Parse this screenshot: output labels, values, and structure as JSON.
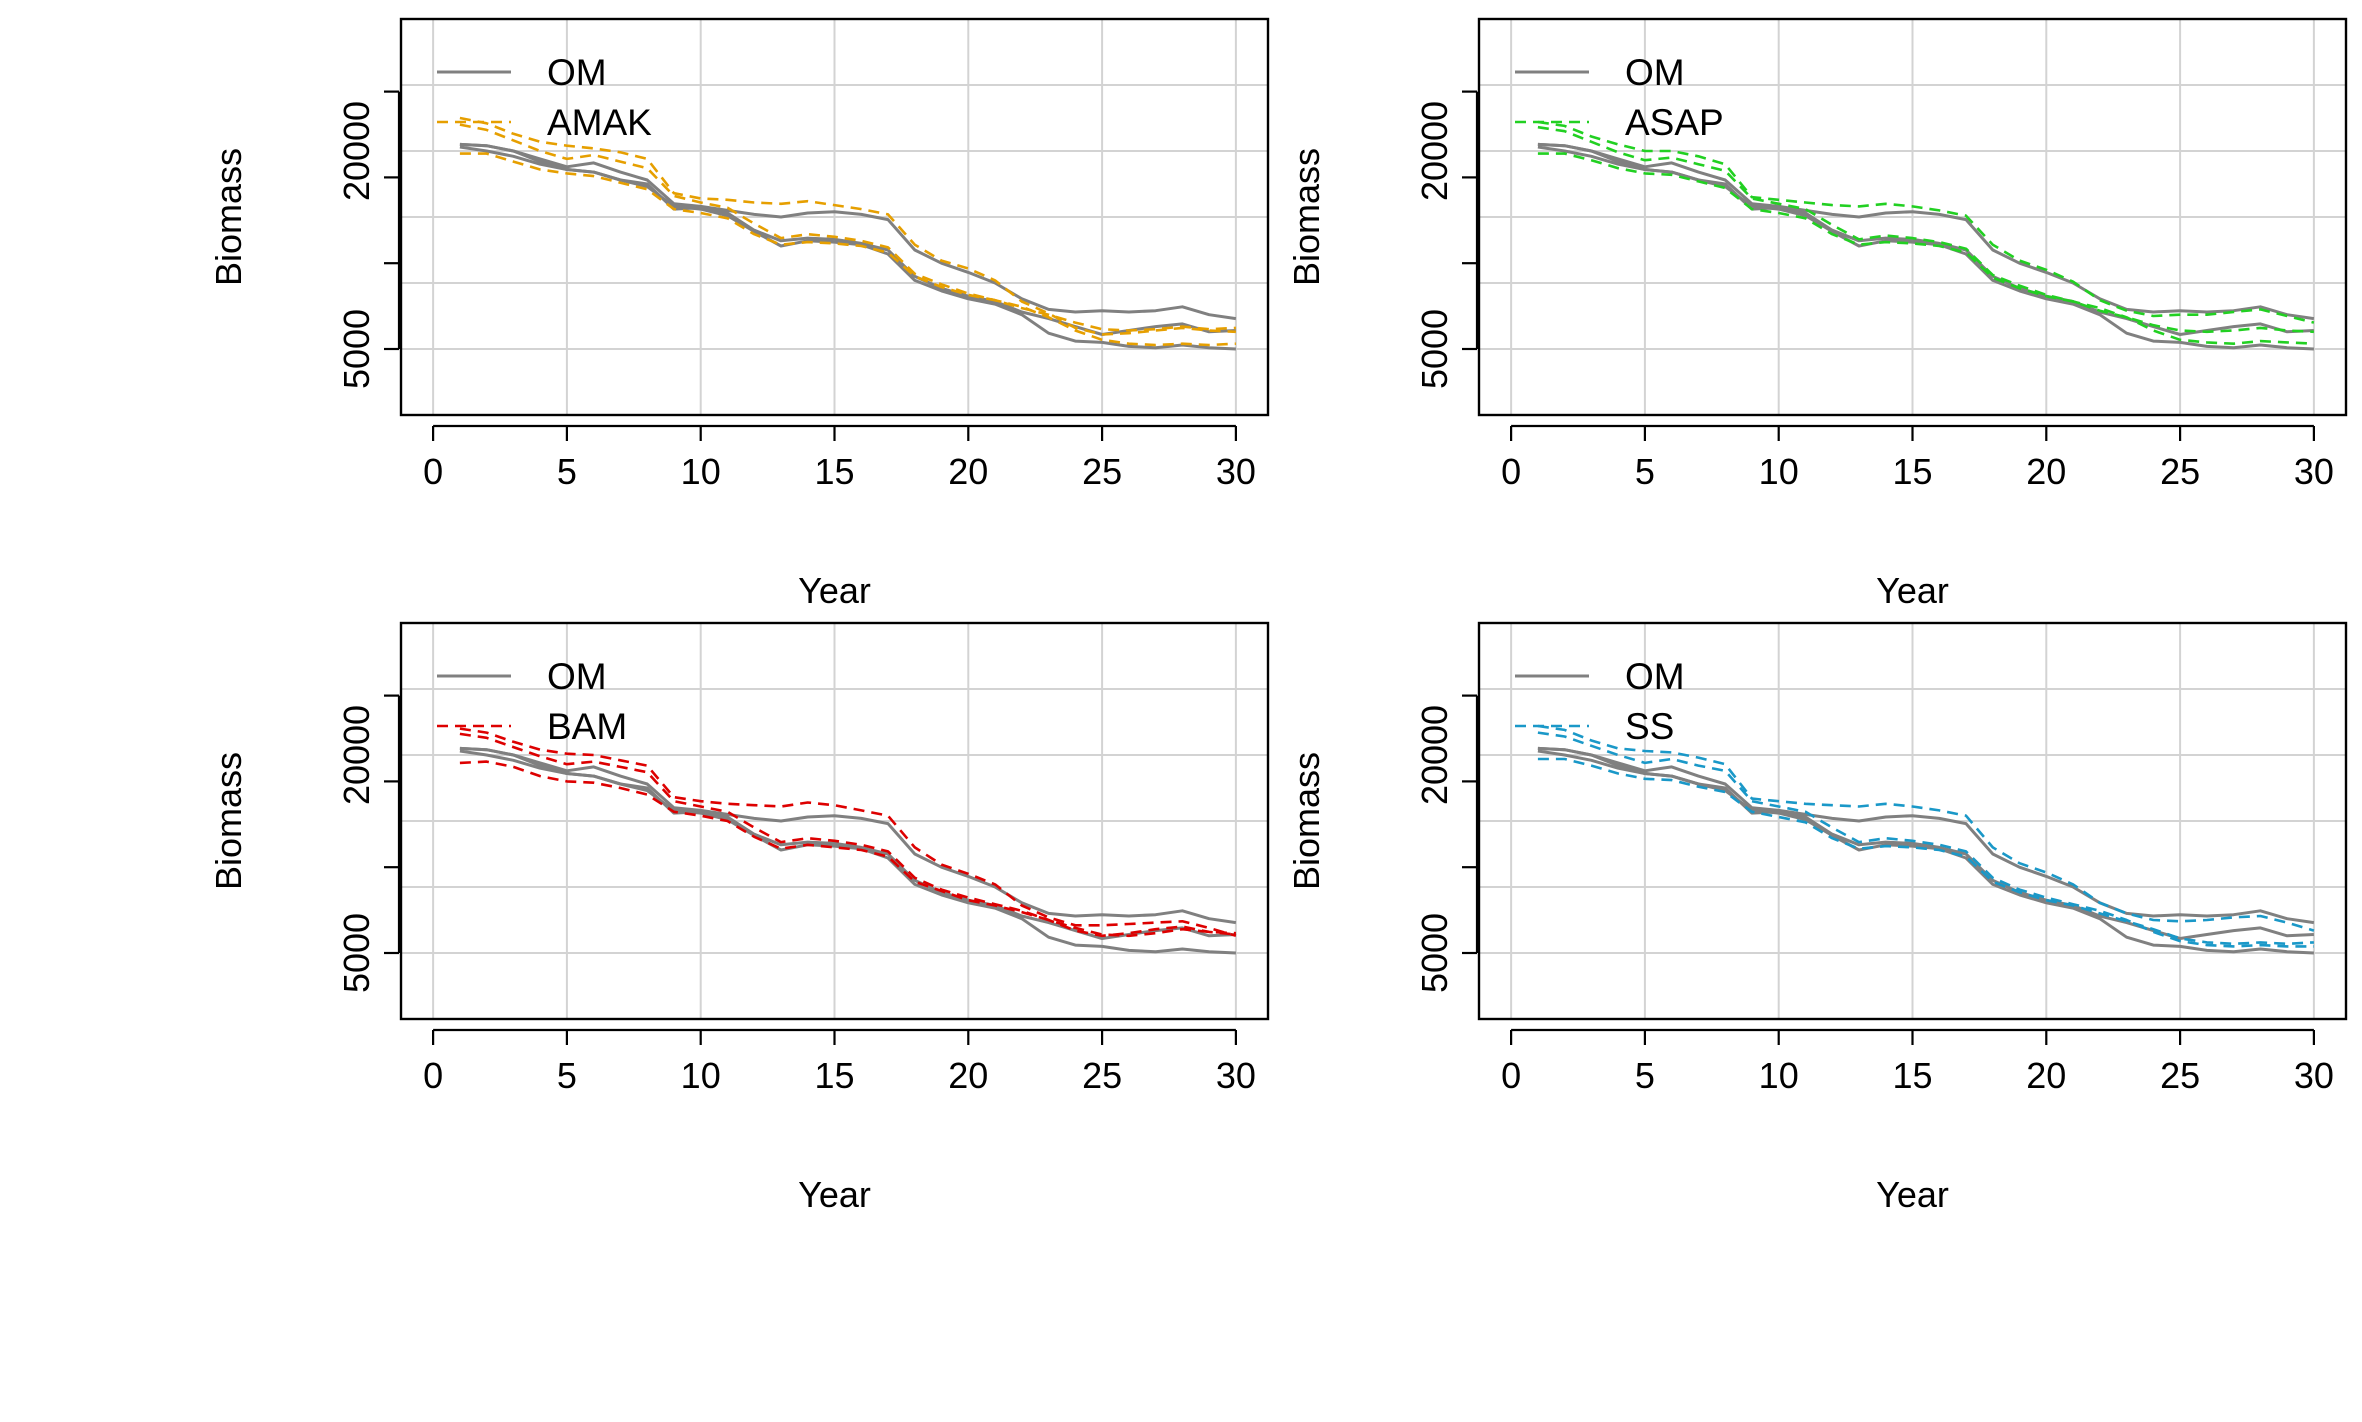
{
  "chart_data": [
    {
      "type": "line",
      "xlabel": "Year",
      "ylabel": "Biomass",
      "xlim": [
        0,
        30
      ],
      "ylim": [
        0,
        30000
      ],
      "x_ticks": [
        0,
        5,
        10,
        15,
        20,
        25,
        30
      ],
      "y_tick_labels": [
        {
          "value": 5000,
          "label": "5000"
        },
        {
          "value": 20000,
          "label": "20000"
        }
      ],
      "grid": true,
      "legend_placement": "top-left",
      "legend": [
        "OM",
        "AMAK"
      ],
      "colors": {
        "om": "#808080",
        "model": "#E69F00"
      },
      "x": [
        1,
        2,
        3,
        4,
        5,
        6,
        7,
        8,
        9,
        10,
        11,
        12,
        13,
        14,
        15,
        16,
        17,
        18,
        19,
        20,
        21,
        22,
        23,
        24,
        25,
        26,
        27,
        28,
        29,
        30
      ],
      "om_series": [
        [
          20500,
          20400,
          20000,
          19400,
          18800,
          19100,
          18400,
          17800,
          16000,
          15800,
          15500,
          15200,
          15000,
          15300,
          15400,
          15200,
          14800,
          12500,
          11500,
          10800,
          10000,
          8800,
          8000,
          7800,
          7900,
          7800,
          7900,
          8200,
          7600,
          7300
        ],
        [
          20500,
          20400,
          20000,
          19200,
          18600,
          18400,
          17800,
          17500,
          15600,
          15700,
          15300,
          14000,
          13200,
          13400,
          13300,
          13000,
          12500,
          10500,
          9600,
          9000,
          8600,
          7800,
          7300,
          6700,
          6100,
          6400,
          6700,
          6900,
          6300,
          6400
        ],
        [
          20300,
          20000,
          19600,
          19000,
          18600,
          18400,
          17800,
          17300,
          15800,
          15600,
          15100,
          13900,
          12800,
          13200,
          13100,
          12900,
          12200,
          10200,
          9400,
          8800,
          8400,
          7600,
          6200,
          5600,
          5500,
          5200,
          5100,
          5300,
          5100,
          5000
        ]
      ],
      "model_series": [
        [
          22500,
          22100,
          21300,
          20700,
          20400,
          20200,
          19900,
          19400,
          16800,
          16400,
          16300,
          16100,
          16000,
          16200,
          15900,
          15600,
          15200,
          12900,
          11700,
          11100,
          10200,
          8600,
          7700,
          6600,
          6100,
          6200,
          6400,
          6600,
          6400,
          6300
        ],
        [
          22000,
          21600,
          20800,
          20000,
          19400,
          19700,
          19200,
          18700,
          16600,
          16100,
          15700,
          14500,
          13400,
          13700,
          13500,
          13200,
          12700,
          10700,
          9900,
          9200,
          8700,
          8200,
          7400,
          6400,
          5700,
          5400,
          5300,
          5400,
          5300,
          5400
        ],
        [
          19800,
          19800,
          19200,
          18600,
          18300,
          18100,
          17600,
          17100,
          15600,
          15300,
          14900,
          13700,
          12900,
          13100,
          13000,
          12800,
          12300,
          10500,
          9700,
          9100,
          8700,
          8100,
          7600,
          7000,
          6500,
          6400,
          6500,
          6700,
          6500,
          6600
        ]
      ]
    },
    {
      "type": "line",
      "xlabel": "Year",
      "ylabel": "Biomass",
      "xlim": [
        0,
        30
      ],
      "ylim": [
        0,
        30000
      ],
      "x_ticks": [
        0,
        5,
        10,
        15,
        20,
        25,
        30
      ],
      "y_tick_labels": [
        {
          "value": 5000,
          "label": "5000"
        },
        {
          "value": 20000,
          "label": "20000"
        }
      ],
      "grid": true,
      "legend_placement": "top-left",
      "legend": [
        "OM",
        "ASAP"
      ],
      "colors": {
        "om": "#808080",
        "model": "#22D022"
      },
      "x": [
        1,
        2,
        3,
        4,
        5,
        6,
        7,
        8,
        9,
        10,
        11,
        12,
        13,
        14,
        15,
        16,
        17,
        18,
        19,
        20,
        21,
        22,
        23,
        24,
        25,
        26,
        27,
        28,
        29,
        30
      ],
      "om_series": [
        [
          20500,
          20400,
          20000,
          19400,
          18800,
          19100,
          18400,
          17800,
          16000,
          15800,
          15500,
          15200,
          15000,
          15300,
          15400,
          15200,
          14800,
          12500,
          11500,
          10800,
          10000,
          8800,
          8000,
          7800,
          7900,
          7800,
          7900,
          8200,
          7600,
          7300
        ],
        [
          20500,
          20400,
          20000,
          19200,
          18600,
          18400,
          17800,
          17500,
          15600,
          15700,
          15300,
          14000,
          13200,
          13400,
          13300,
          13000,
          12500,
          10500,
          9600,
          9000,
          8600,
          7800,
          7300,
          6700,
          6100,
          6400,
          6700,
          6900,
          6300,
          6400
        ],
        [
          20300,
          20000,
          19600,
          19000,
          18600,
          18400,
          17800,
          17300,
          15800,
          15600,
          15100,
          13900,
          12800,
          13200,
          13100,
          12900,
          12200,
          10200,
          9400,
          8800,
          8400,
          7600,
          6200,
          5600,
          5500,
          5200,
          5100,
          5300,
          5100,
          5000
        ]
      ],
      "model_series": [
        [
          22200,
          21900,
          21100,
          20500,
          20000,
          20000,
          19600,
          19000,
          16500,
          16300,
          16100,
          15900,
          15800,
          16000,
          15800,
          15500,
          15100,
          12900,
          11700,
          11000,
          10100,
          8700,
          7900,
          7500,
          7600,
          7600,
          7800,
          8000,
          7500,
          7000
        ],
        [
          21800,
          21500,
          20700,
          19900,
          19300,
          19500,
          19000,
          18500,
          16400,
          16000,
          15600,
          14400,
          13300,
          13600,
          13400,
          13100,
          12600,
          10600,
          9800,
          9100,
          8600,
          8100,
          7400,
          6400,
          5700,
          5500,
          5400,
          5600,
          5500,
          5400
        ],
        [
          19800,
          19800,
          19300,
          18700,
          18300,
          18200,
          17700,
          17200,
          15600,
          15300,
          14900,
          13700,
          12900,
          13100,
          13000,
          12800,
          12300,
          10400,
          9600,
          9000,
          8600,
          7900,
          7400,
          6800,
          6400,
          6300,
          6400,
          6600,
          6400,
          6300
        ]
      ]
    },
    {
      "type": "line",
      "xlabel": "Year",
      "ylabel": "Biomass",
      "xlim": [
        0,
        30
      ],
      "ylim": [
        0,
        30000
      ],
      "x_ticks": [
        0,
        5,
        10,
        15,
        20,
        25,
        30
      ],
      "y_tick_labels": [
        {
          "value": 5000,
          "label": "5000"
        },
        {
          "value": 20000,
          "label": "20000"
        }
      ],
      "grid": true,
      "legend_placement": "top-left",
      "legend": [
        "OM",
        "BAM"
      ],
      "colors": {
        "om": "#808080",
        "model": "#DD0000"
      },
      "x": [
        1,
        2,
        3,
        4,
        5,
        6,
        7,
        8,
        9,
        10,
        11,
        12,
        13,
        14,
        15,
        16,
        17,
        18,
        19,
        20,
        21,
        22,
        23,
        24,
        25,
        26,
        27,
        28,
        29,
        30
      ],
      "om_series": [
        [
          20500,
          20400,
          20000,
          19400,
          18800,
          19100,
          18400,
          17800,
          16000,
          15800,
          15500,
          15200,
          15000,
          15300,
          15400,
          15200,
          14800,
          12500,
          11500,
          10800,
          10000,
          8800,
          8000,
          7800,
          7900,
          7800,
          7900,
          8200,
          7600,
          7300
        ],
        [
          20500,
          20400,
          20000,
          19200,
          18600,
          18400,
          17800,
          17500,
          15600,
          15700,
          15300,
          14000,
          13200,
          13400,
          13300,
          13000,
          12500,
          10500,
          9600,
          9000,
          8600,
          7800,
          7300,
          6700,
          6100,
          6400,
          6700,
          6900,
          6300,
          6400
        ],
        [
          20300,
          20000,
          19600,
          19000,
          18600,
          18400,
          17800,
          17300,
          15800,
          15600,
          15100,
          13900,
          12800,
          13200,
          13100,
          12900,
          12200,
          10200,
          9400,
          8800,
          8400,
          7600,
          6200,
          5600,
          5500,
          5200,
          5100,
          5300,
          5100,
          5000
        ]
      ],
      "model_series": [
        [
          22000,
          21700,
          21000,
          20400,
          20100,
          20000,
          19600,
          19200,
          16800,
          16500,
          16300,
          16200,
          16100,
          16400,
          16200,
          15800,
          15400,
          13000,
          11700,
          11000,
          10200,
          8600,
          7700,
          7100,
          7100,
          7200,
          7300,
          7400,
          6900,
          6300
        ],
        [
          21600,
          21300,
          20600,
          19900,
          19300,
          19500,
          19100,
          18700,
          16500,
          16100,
          15700,
          14500,
          13400,
          13700,
          13500,
          13200,
          12700,
          10700,
          9800,
          9200,
          8700,
          8200,
          7500,
          6700,
          6300,
          6500,
          6800,
          7000,
          6600,
          6400
        ],
        [
          19400,
          19500,
          19100,
          18400,
          18000,
          17900,
          17500,
          17000,
          15700,
          15400,
          15000,
          13800,
          12900,
          13200,
          13000,
          12800,
          12300,
          10400,
          9700,
          9000,
          8600,
          8100,
          7500,
          6900,
          6400,
          6300,
          6500,
          6800,
          6600,
          6500
        ]
      ]
    },
    {
      "type": "line",
      "xlabel": "Year",
      "ylabel": "Biomass",
      "xlim": [
        0,
        30
      ],
      "ylim": [
        0,
        30000
      ],
      "x_ticks": [
        0,
        5,
        10,
        15,
        20,
        25,
        30
      ],
      "y_tick_labels": [
        {
          "value": 5000,
          "label": "5000"
        },
        {
          "value": 20000,
          "label": "20000"
        }
      ],
      "grid": true,
      "legend_placement": "top-left",
      "legend": [
        "OM",
        "SS"
      ],
      "colors": {
        "om": "#808080",
        "model": "#1A98C8"
      },
      "x": [
        1,
        2,
        3,
        4,
        5,
        6,
        7,
        8,
        9,
        10,
        11,
        12,
        13,
        14,
        15,
        16,
        17,
        18,
        19,
        20,
        21,
        22,
        23,
        24,
        25,
        26,
        27,
        28,
        29,
        30
      ],
      "om_series": [
        [
          20500,
          20400,
          20000,
          19400,
          18800,
          19100,
          18400,
          17800,
          16000,
          15800,
          15500,
          15200,
          15000,
          15300,
          15400,
          15200,
          14800,
          12500,
          11500,
          10800,
          10000,
          8800,
          8000,
          7800,
          7900,
          7800,
          7900,
          8200,
          7600,
          7300
        ],
        [
          20500,
          20400,
          20000,
          19200,
          18600,
          18400,
          17800,
          17500,
          15600,
          15700,
          15300,
          14000,
          13200,
          13400,
          13300,
          13000,
          12500,
          10500,
          9600,
          9000,
          8600,
          7800,
          7300,
          6700,
          6100,
          6400,
          6700,
          6900,
          6300,
          6400
        ],
        [
          20300,
          20000,
          19600,
          19000,
          18600,
          18400,
          17800,
          17300,
          15800,
          15600,
          15100,
          13900,
          12800,
          13200,
          13100,
          12900,
          12200,
          10200,
          9400,
          8800,
          8400,
          7600,
          6200,
          5600,
          5500,
          5200,
          5100,
          5300,
          5100,
          5000
        ]
      ],
      "model_series": [
        [
          22200,
          21900,
          21100,
          20500,
          20300,
          20200,
          19800,
          19300,
          16700,
          16500,
          16300,
          16200,
          16100,
          16300,
          16100,
          15800,
          15400,
          13000,
          11800,
          11100,
          10200,
          8800,
          8000,
          7500,
          7400,
          7500,
          7700,
          7800,
          7300,
          6700
        ],
        [
          21700,
          21400,
          20700,
          20000,
          19400,
          19700,
          19200,
          18800,
          16500,
          16100,
          15700,
          14500,
          13400,
          13700,
          13500,
          13200,
          12700,
          10700,
          9800,
          9200,
          8700,
          8200,
          7500,
          6600,
          5900,
          5600,
          5500,
          5600,
          5500,
          5500
        ],
        [
          19700,
          19700,
          19200,
          18600,
          18200,
          18100,
          17600,
          17200,
          15700,
          15300,
          14900,
          13700,
          12900,
          13100,
          13000,
          12800,
          12300,
          10400,
          9600,
          9000,
          8600,
          8000,
          7400,
          6800,
          6100,
          5800,
          5700,
          5800,
          5700,
          5800
        ]
      ]
    }
  ]
}
